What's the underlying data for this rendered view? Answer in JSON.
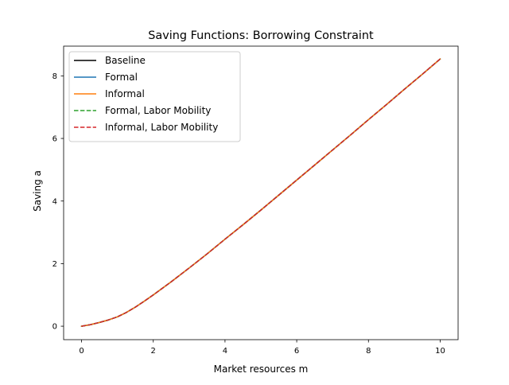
{
  "chart_data": {
    "type": "line",
    "title": "Saving Functions: Borrowing Constraint",
    "xlabel": "Market resources m",
    "ylabel": "Saving a",
    "xlim": [
      -0.5,
      10.5
    ],
    "ylim": [
      -0.43,
      8.95
    ],
    "xticks": [
      0,
      2,
      4,
      6,
      8,
      10
    ],
    "yticks": [
      0,
      2,
      4,
      6,
      8
    ],
    "grid": false,
    "legend_position": "upper-left",
    "x": [
      0,
      0.25,
      0.5,
      0.75,
      1.0,
      1.25,
      1.5,
      1.75,
      2.0,
      2.5,
      3.0,
      3.5,
      4.0,
      4.5,
      5.0,
      5.5,
      6.0,
      6.5,
      7.0,
      7.5,
      8.0,
      8.5,
      9.0,
      9.5,
      10.0
    ],
    "series": [
      {
        "name": "Baseline",
        "color": "#000000",
        "dash": "solid",
        "values": [
          0.0,
          0.05,
          0.12,
          0.2,
          0.3,
          0.44,
          0.61,
          0.8,
          1.0,
          1.42,
          1.86,
          2.31,
          2.78,
          3.24,
          3.71,
          4.19,
          4.67,
          5.15,
          5.63,
          6.11,
          6.6,
          7.08,
          7.57,
          8.05,
          8.54
        ]
      },
      {
        "name": "Formal",
        "color": "#1f77b4",
        "dash": "solid",
        "values": [
          0.0,
          0.05,
          0.12,
          0.2,
          0.3,
          0.44,
          0.61,
          0.8,
          1.0,
          1.42,
          1.86,
          2.31,
          2.78,
          3.24,
          3.71,
          4.19,
          4.67,
          5.15,
          5.63,
          6.11,
          6.6,
          7.08,
          7.57,
          8.05,
          8.54
        ]
      },
      {
        "name": "Informal",
        "color": "#ff7f0e",
        "dash": "solid",
        "values": [
          0.0,
          0.05,
          0.12,
          0.2,
          0.3,
          0.44,
          0.61,
          0.8,
          1.0,
          1.42,
          1.86,
          2.31,
          2.78,
          3.24,
          3.71,
          4.19,
          4.67,
          5.15,
          5.63,
          6.11,
          6.6,
          7.08,
          7.57,
          8.05,
          8.54
        ]
      },
      {
        "name": "Formal, Labor Mobility",
        "color": "#2ca02c",
        "dash": "dashed",
        "values": [
          0.0,
          0.05,
          0.12,
          0.2,
          0.3,
          0.44,
          0.61,
          0.8,
          1.0,
          1.42,
          1.86,
          2.31,
          2.78,
          3.24,
          3.71,
          4.19,
          4.67,
          5.15,
          5.63,
          6.11,
          6.6,
          7.08,
          7.57,
          8.05,
          8.54
        ]
      },
      {
        "name": "Informal, Labor Mobility",
        "color": "#d62728",
        "dash": "dashed",
        "values": [
          0.0,
          0.05,
          0.12,
          0.2,
          0.3,
          0.44,
          0.61,
          0.8,
          1.0,
          1.42,
          1.86,
          2.31,
          2.78,
          3.24,
          3.71,
          4.19,
          4.67,
          5.15,
          5.63,
          6.11,
          6.6,
          7.08,
          7.57,
          8.05,
          8.54
        ]
      }
    ]
  }
}
